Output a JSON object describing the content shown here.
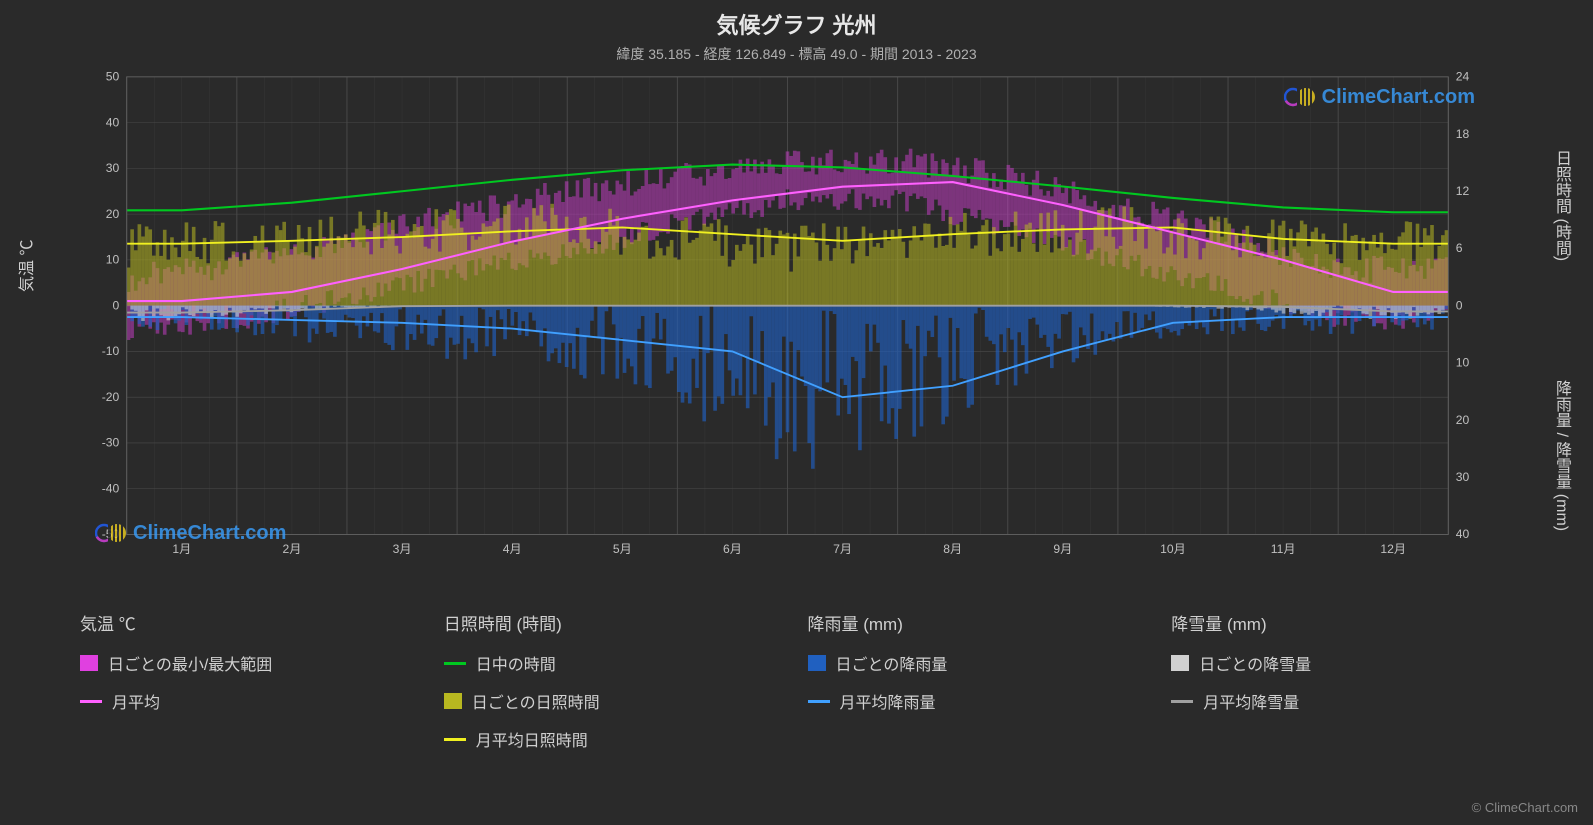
{
  "title": "気候グラフ 光州",
  "subtitle": "緯度 35.185 - 経度 126.849 - 標高 49.0 - 期間 2013 - 2023",
  "watermark_text": "ClimeChart.com",
  "watermark_color": "#3aa0ff",
  "copyright": "© ClimeChart.com",
  "background_color": "#2a2a2a",
  "plot_background": "#2a2a2a",
  "grid_color": "#4a4a4a",
  "axis_text_color": "#c0c0c0",
  "y_left": {
    "label": "気温 ℃",
    "min": -50,
    "max": 50,
    "step": 10,
    "ticks": [
      50,
      40,
      30,
      20,
      10,
      0,
      -10,
      -20,
      -30,
      -40,
      -50
    ]
  },
  "y_right_top": {
    "label": "日照時間 (時間)",
    "min": 0,
    "max": 24,
    "step": 6,
    "ticks": [
      24,
      18,
      12,
      6,
      0
    ]
  },
  "y_right_bottom": {
    "label": "降雨量 / 降雪量 (mm)",
    "min": 0,
    "max": 40,
    "step": 10,
    "ticks": [
      0,
      10,
      20,
      30,
      40
    ]
  },
  "months": [
    "1月",
    "2月",
    "3月",
    "4月",
    "5月",
    "6月",
    "7月",
    "8月",
    "9月",
    "10月",
    "11月",
    "12月"
  ],
  "series": {
    "temp_range": {
      "color": "#e040e0",
      "min": [
        -5,
        -3,
        2,
        7,
        12,
        18,
        23,
        23,
        17,
        10,
        4,
        -3
      ],
      "max": [
        6,
        9,
        14,
        20,
        25,
        28,
        31,
        32,
        28,
        22,
        15,
        8
      ]
    },
    "temp_avg": {
      "color": "#ff60ff",
      "values": [
        1,
        3,
        8,
        14,
        19,
        23,
        26,
        27,
        22,
        16,
        10,
        3
      ]
    },
    "daylight": {
      "color": "#00c820",
      "values": [
        10.0,
        10.8,
        12.0,
        13.2,
        14.2,
        14.8,
        14.5,
        13.6,
        12.5,
        11.3,
        10.3,
        9.8
      ]
    },
    "sunshine_daily": {
      "color": "#b8b820",
      "values": [
        5.5,
        6.0,
        6.5,
        7.0,
        7.5,
        6.0,
        5.0,
        6.0,
        6.5,
        7.0,
        6.0,
        5.5
      ]
    },
    "sunshine_avg": {
      "color": "#f0f020",
      "values": [
        6.5,
        6.8,
        7.2,
        7.8,
        8.2,
        7.5,
        6.8,
        7.5,
        8.0,
        8.2,
        7.0,
        6.5
      ]
    },
    "rain_daily": {
      "color": "#2060c0",
      "values": [
        2,
        2,
        3,
        4,
        5,
        7,
        12,
        10,
        6,
        3,
        2,
        2
      ]
    },
    "rain_avg": {
      "color": "#40a0ff",
      "values": [
        2,
        2.5,
        3,
        4,
        6,
        8,
        16,
        14,
        8,
        3,
        2,
        2
      ]
    },
    "snow_daily": {
      "color": "#d0d0d0",
      "values": [
        1.5,
        1,
        0.2,
        0,
        0,
        0,
        0,
        0,
        0,
        0,
        0.3,
        1.2
      ]
    },
    "snow_avg": {
      "color": "#a0a0a0",
      "values": [
        1.2,
        0.8,
        0.1,
        0,
        0,
        0,
        0,
        0,
        0,
        0,
        0.2,
        1.0
      ]
    }
  },
  "legend": {
    "temp": {
      "header": "気温 ℃",
      "items": [
        {
          "swatch": "#e040e0",
          "type": "block",
          "label": "日ごとの最小/最大範囲"
        },
        {
          "swatch": "#ff60ff",
          "type": "line",
          "label": "月平均"
        }
      ]
    },
    "sunshine": {
      "header": "日照時間 (時間)",
      "items": [
        {
          "swatch": "#00c820",
          "type": "line",
          "label": "日中の時間"
        },
        {
          "swatch": "#b8b820",
          "type": "block",
          "label": "日ごとの日照時間"
        },
        {
          "swatch": "#f0f020",
          "type": "line",
          "label": "月平均日照時間"
        }
      ]
    },
    "rain": {
      "header": "降雨量 (mm)",
      "items": [
        {
          "swatch": "#2060c0",
          "type": "block",
          "label": "日ごとの降雨量"
        },
        {
          "swatch": "#40a0ff",
          "type": "line",
          "label": "月平均降雨量"
        }
      ]
    },
    "snow": {
      "header": "降雪量 (mm)",
      "items": [
        {
          "swatch": "#d0d0d0",
          "type": "block",
          "label": "日ごとの降雪量"
        },
        {
          "swatch": "#a0a0a0",
          "type": "line",
          "label": "月平均降雪量"
        }
      ]
    }
  }
}
